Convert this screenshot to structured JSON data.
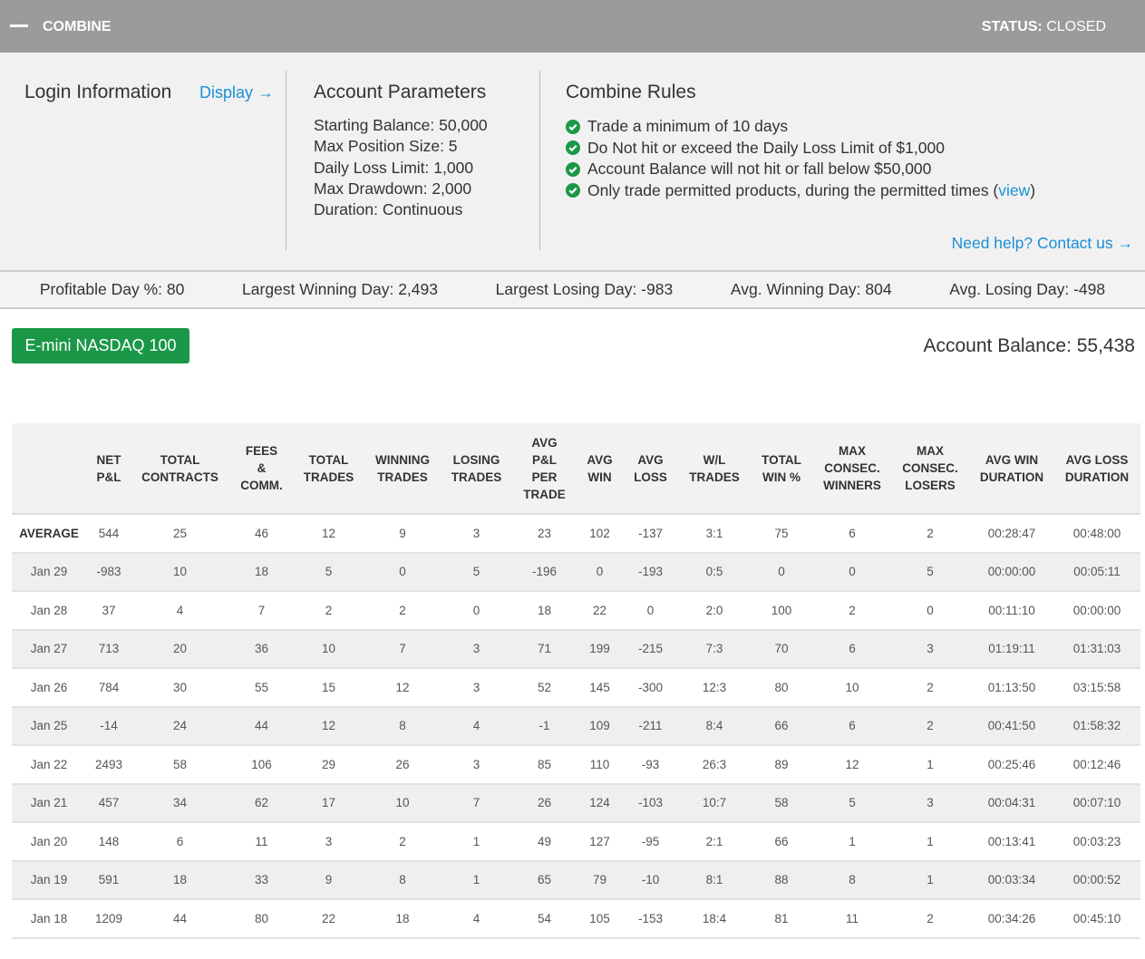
{
  "header": {
    "title": "COMBINE",
    "status_label": "STATUS:",
    "status_value": "CLOSED"
  },
  "login": {
    "title": "Login Information",
    "link": "Display →"
  },
  "parameters": {
    "title": "Account Parameters",
    "items": [
      "Starting Balance: 50,000",
      "Max Position Size: 5",
      "Daily Loss Limit: 1,000",
      "Max Drawdown: 2,000",
      "Duration: Continuous"
    ]
  },
  "rules": {
    "title": "Combine Rules",
    "items": [
      {
        "text": "Trade a minimum of 10 days"
      },
      {
        "text": "Do Not hit or exceed the Daily Loss Limit of $1,000"
      },
      {
        "text": "Account Balance will not hit or fall below $50,000"
      },
      {
        "text": "Only trade permitted products, during the permitted times (",
        "link": "view",
        "after": ")"
      }
    ],
    "help": "Need help? Contact us →"
  },
  "stats": [
    "Profitable Day %: 80",
    "Largest Winning Day: 2,493",
    "Largest Losing Day: -983",
    "Avg. Winning Day: 804",
    "Avg. Losing Day: -498"
  ],
  "product": "E-mini NASDAQ 100",
  "account_balance": "Account Balance: 55,438",
  "table": {
    "headers": [
      "NET\nP&L",
      "TOTAL\nCONTRACTS",
      "FEES\n&\nCOMM.",
      "TOTAL\nTRADES",
      "WINNING\nTRADES",
      "LOSING\nTRADES",
      "AVG\nP&L\nPER\nTRADE",
      "AVG\nWIN",
      "AVG\nLOSS",
      "W/L\nTRADES",
      "TOTAL\nWIN %",
      "MAX\nCONSEC.\nWINNERS",
      "MAX\nCONSEC.\nLOSERS",
      "AVG WIN\nDURATION",
      "AVG LOSS\nDURATION"
    ],
    "rows": [
      [
        "AVERAGE",
        "544",
        "25",
        "46",
        "12",
        "9",
        "3",
        "23",
        "102",
        "-137",
        "3:1",
        "75",
        "6",
        "2",
        "00:28:47",
        "00:48:00"
      ],
      [
        "Jan 29",
        "-983",
        "10",
        "18",
        "5",
        "0",
        "5",
        "-196",
        "0",
        "-193",
        "0:5",
        "0",
        "0",
        "5",
        "00:00:00",
        "00:05:11"
      ],
      [
        "Jan 28",
        "37",
        "4",
        "7",
        "2",
        "2",
        "0",
        "18",
        "22",
        "0",
        "2:0",
        "100",
        "2",
        "0",
        "00:11:10",
        "00:00:00"
      ],
      [
        "Jan 27",
        "713",
        "20",
        "36",
        "10",
        "7",
        "3",
        "71",
        "199",
        "-215",
        "7:3",
        "70",
        "6",
        "3",
        "01:19:11",
        "01:31:03"
      ],
      [
        "Jan 26",
        "784",
        "30",
        "55",
        "15",
        "12",
        "3",
        "52",
        "145",
        "-300",
        "12:3",
        "80",
        "10",
        "2",
        "01:13:50",
        "03:15:58"
      ],
      [
        "Jan 25",
        "-14",
        "24",
        "44",
        "12",
        "8",
        "4",
        "-1",
        "109",
        "-211",
        "8:4",
        "66",
        "6",
        "2",
        "00:41:50",
        "01:58:32"
      ],
      [
        "Jan 22",
        "2493",
        "58",
        "106",
        "29",
        "26",
        "3",
        "85",
        "110",
        "-93",
        "26:3",
        "89",
        "12",
        "1",
        "00:25:46",
        "00:12:46"
      ],
      [
        "Jan 21",
        "457",
        "34",
        "62",
        "17",
        "10",
        "7",
        "26",
        "124",
        "-103",
        "10:7",
        "58",
        "5",
        "3",
        "00:04:31",
        "00:07:10"
      ],
      [
        "Jan 20",
        "148",
        "6",
        "11",
        "3",
        "2",
        "1",
        "49",
        "127",
        "-95",
        "2:1",
        "66",
        "1",
        "1",
        "00:13:41",
        "00:03:23"
      ],
      [
        "Jan 19",
        "591",
        "18",
        "33",
        "9",
        "8",
        "1",
        "65",
        "79",
        "-10",
        "8:1",
        "88",
        "8",
        "1",
        "00:03:34",
        "00:00:52"
      ],
      [
        "Jan 18",
        "1209",
        "44",
        "80",
        "22",
        "18",
        "4",
        "54",
        "105",
        "-153",
        "18:4",
        "81",
        "11",
        "2",
        "00:34:26",
        "00:45:10"
      ]
    ]
  }
}
